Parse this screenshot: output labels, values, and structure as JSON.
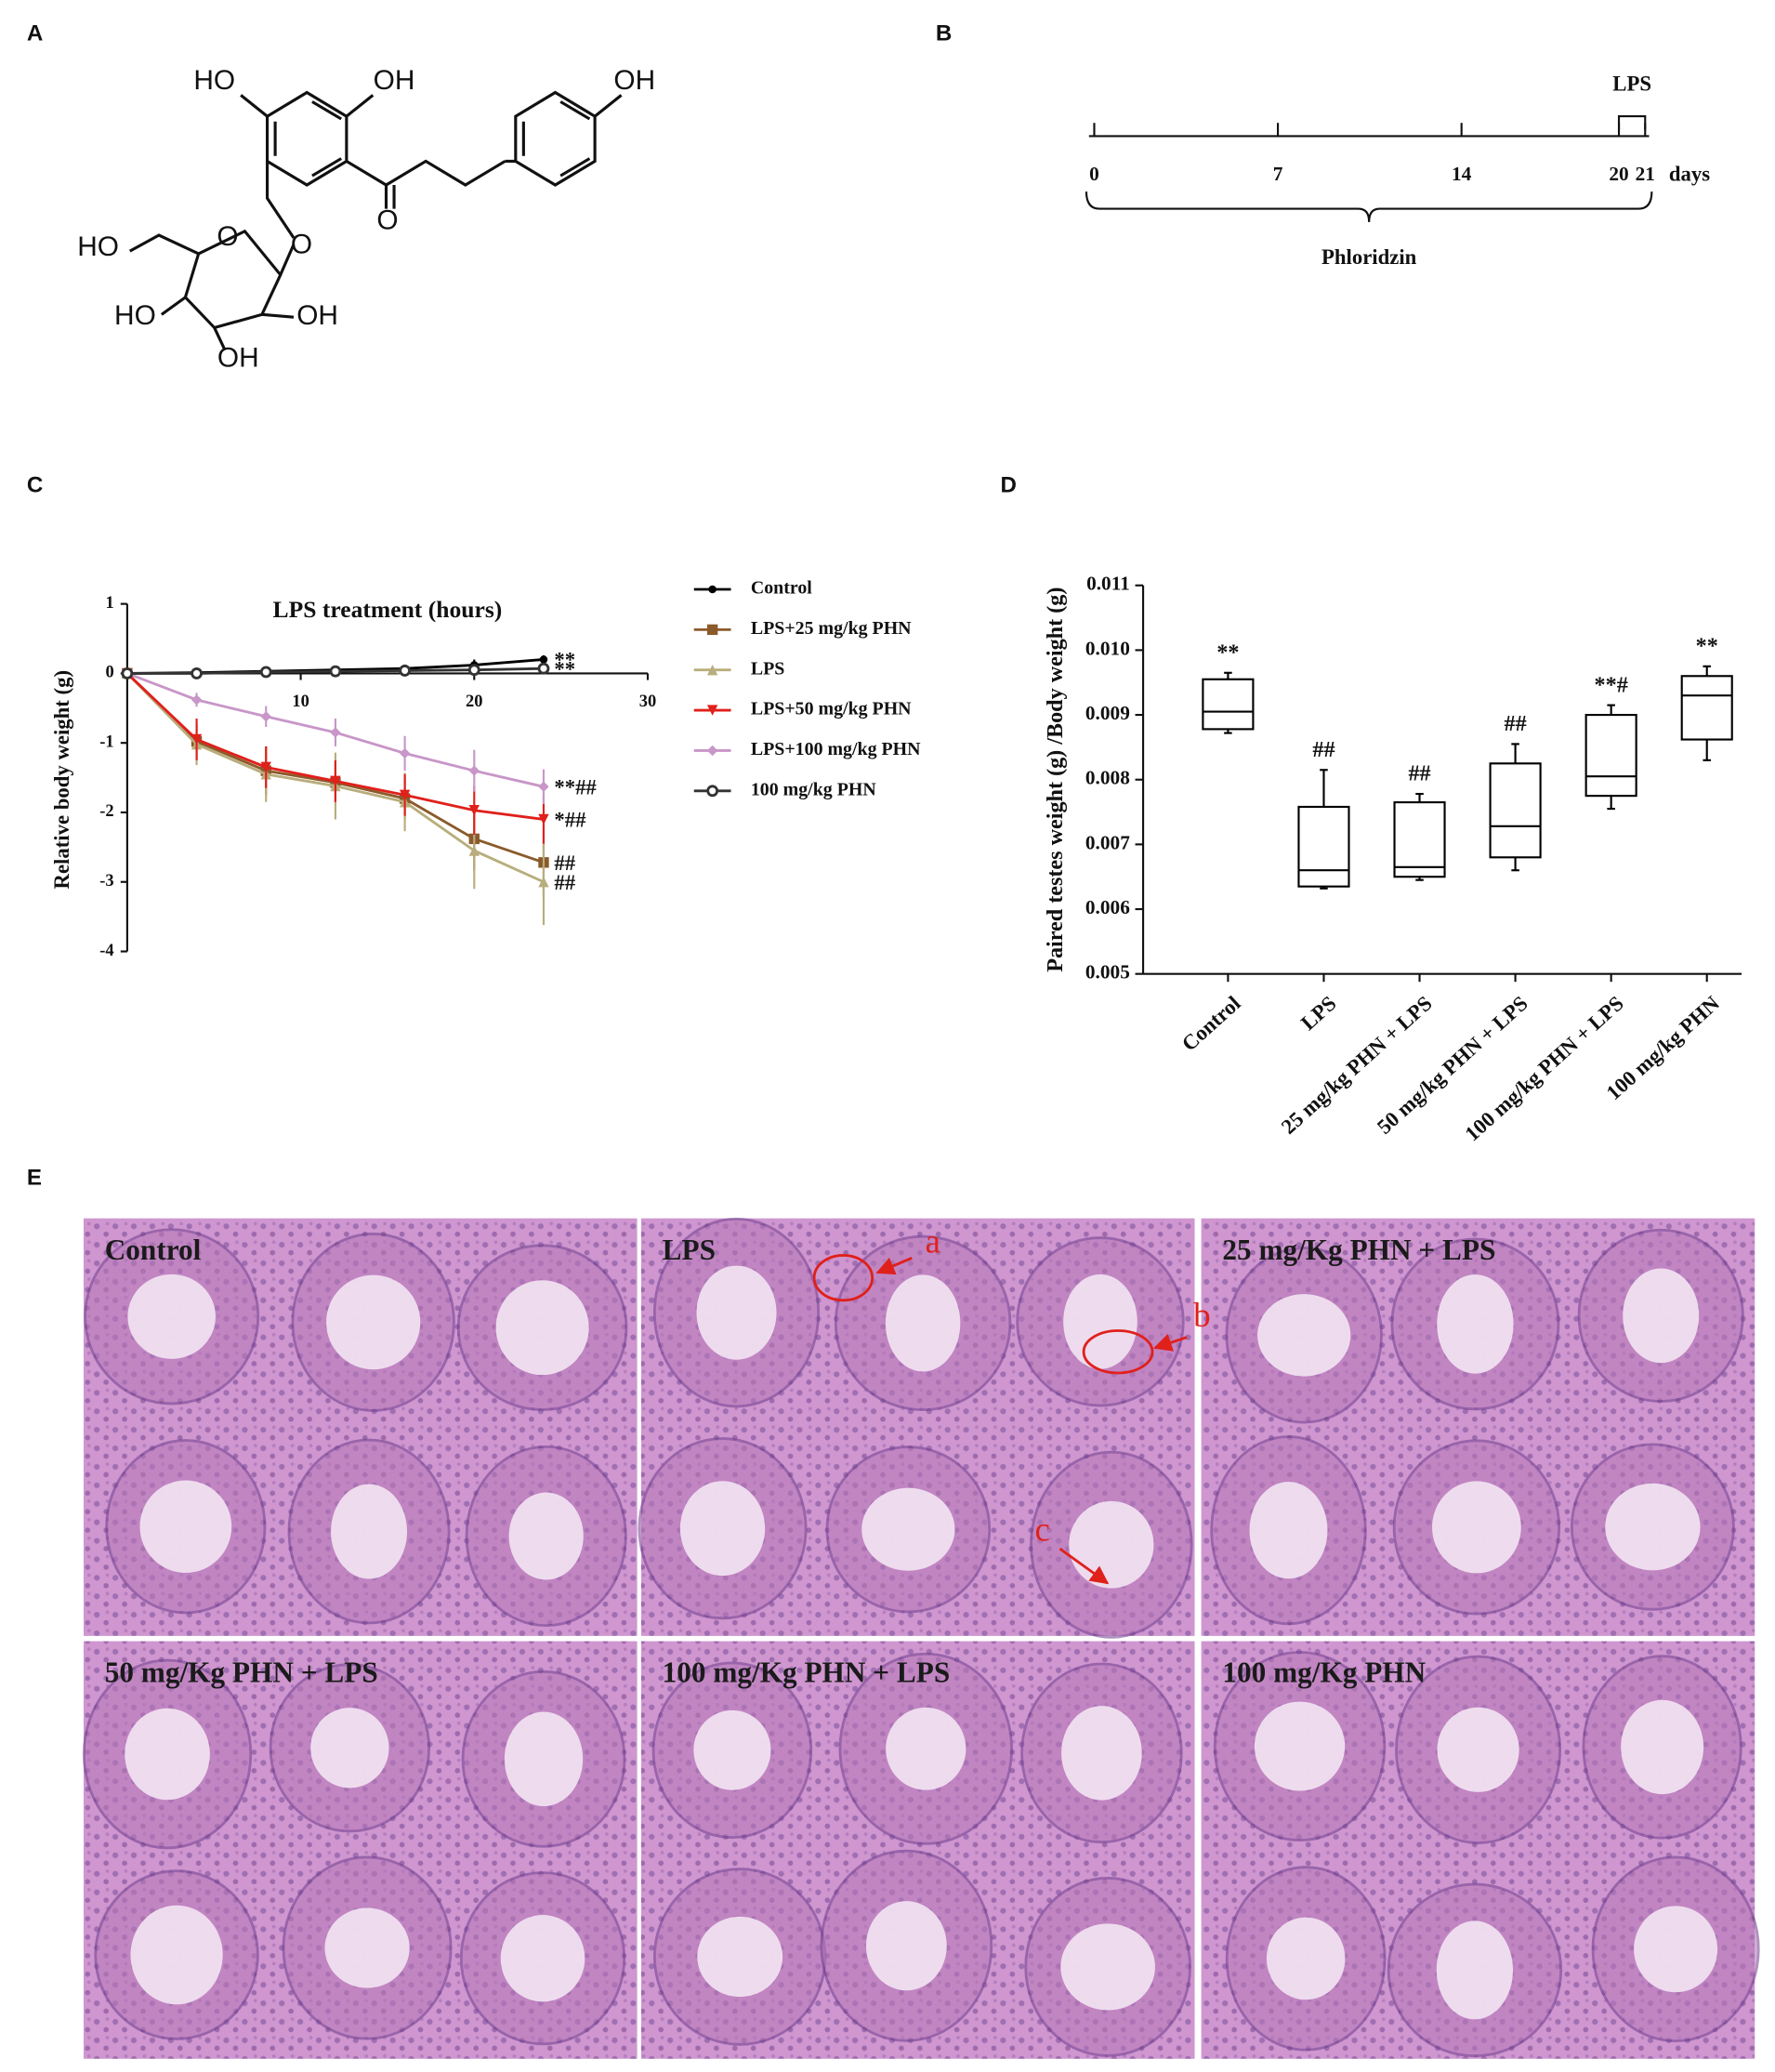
{
  "panel_labels": [
    "A",
    "B",
    "C",
    "D",
    "E"
  ],
  "structure": {
    "labels": [
      "HO",
      "OH",
      "OH",
      "O",
      "HO",
      "O",
      "O",
      "HO",
      "OH",
      "OH"
    ]
  },
  "timeline": {
    "ticks": [
      0,
      7,
      14,
      20,
      21
    ],
    "unit": "days",
    "treatment": "Phloridzin",
    "challenge": "LPS"
  },
  "chart_data": [
    {
      "type": "line",
      "title": "LPS treatment (hours)",
      "y_label": "Relative body weight (g)",
      "x": [
        0,
        4,
        8,
        12,
        16,
        20,
        24
      ],
      "xlim": [
        0,
        30
      ],
      "xticks": [
        10,
        20,
        30
      ],
      "ylim": [
        -4,
        1
      ],
      "yticks": [
        -4,
        -3,
        -2,
        -1,
        0,
        1
      ],
      "legend": "right",
      "series": [
        {
          "name": "Control",
          "color": "#000000",
          "marker": "circle",
          "values": [
            0,
            0.01,
            0.03,
            0.05,
            0.07,
            0.12,
            0.2
          ],
          "errors": [
            0,
            0.02,
            0.03,
            0.03,
            0.04,
            0.08,
            0.06
          ],
          "annotation": "**"
        },
        {
          "name": "LPS+25 mg/kg PHN",
          "color": "#8b5a2b",
          "marker": "square",
          "values": [
            0,
            -0.98,
            -1.4,
            -1.57,
            -1.8,
            -2.38,
            -2.72
          ],
          "errors": [
            0,
            0.25,
            0.35,
            0.3,
            0.3,
            0.45,
            0.5
          ],
          "annotation": "##"
        },
        {
          "name": "LPS",
          "color": "#b8ad7c",
          "marker": "triangle",
          "values": [
            0,
            -1.02,
            -1.45,
            -1.62,
            -1.85,
            -2.55,
            -3.0
          ],
          "errors": [
            0,
            0.3,
            0.4,
            0.48,
            0.42,
            0.55,
            0.62
          ],
          "annotation": "##"
        },
        {
          "name": "LPS+50 mg/kg PHN",
          "color": "#e0201b",
          "marker": "triangle-down",
          "values": [
            0,
            -0.95,
            -1.35,
            -1.55,
            -1.75,
            -1.97,
            -2.1
          ],
          "errors": [
            0,
            0.3,
            0.3,
            0.3,
            0.3,
            0.35,
            0.35
          ],
          "annotation": "*##"
        },
        {
          "name": "LPS+100 mg/kg PHN",
          "color": "#c896c8",
          "marker": "diamond",
          "values": [
            0,
            -0.38,
            -0.62,
            -0.85,
            -1.15,
            -1.4,
            -1.63
          ],
          "errors": [
            0,
            0.1,
            0.15,
            0.2,
            0.25,
            0.3,
            0.25
          ],
          "annotation": "**##"
        },
        {
          "name": "100 mg/kg PHN",
          "color": "#333333",
          "marker": "open-circle",
          "values": [
            0,
            0,
            0.02,
            0.03,
            0.04,
            0.05,
            0.07
          ],
          "errors": [
            0,
            0.02,
            0.02,
            0.03,
            0.03,
            0.04,
            0.05
          ],
          "annotation": "**"
        }
      ]
    },
    {
      "type": "box",
      "y_label": "Paired testes weight (g) /Body weight (g)",
      "categories": [
        "Control",
        "LPS",
        "25 mg/kg PHN + LPS",
        "50 mg/kg PHN + LPS",
        "100 mg/kg PHN + LPS",
        "100 mg/kg PHN"
      ],
      "min": [
        0.00872,
        0.00632,
        0.00645,
        0.0066,
        0.00755,
        0.0083
      ],
      "q1": [
        0.00878,
        0.00635,
        0.0065,
        0.0068,
        0.00775,
        0.00862
      ],
      "median": [
        0.00905,
        0.0066,
        0.00665,
        0.00728,
        0.00805,
        0.0093
      ],
      "q3": [
        0.00955,
        0.00758,
        0.00765,
        0.00825,
        0.009,
        0.0096
      ],
      "max": [
        0.00965,
        0.00815,
        0.00778,
        0.00855,
        0.00915,
        0.00975
      ],
      "annotations": [
        "**",
        "##",
        "##",
        "##",
        "**#",
        "**"
      ],
      "color": "#000000",
      "ylim": [
        0.005,
        0.011
      ],
      "yticks": [
        0.005,
        0.006,
        0.007,
        0.008,
        0.009,
        {
          "value": 0.01,
          "label": "0.010"
        },
        0.011
      ]
    }
  ],
  "micrographs": [
    {
      "label": "Control"
    },
    {
      "label": "LPS",
      "annotations": [
        "a",
        "b",
        "c"
      ]
    },
    {
      "label": "25 mg/Kg PHN + LPS"
    },
    {
      "label": "50 mg/Kg PHN + LPS"
    },
    {
      "label": "100 mg/Kg PHN + LPS"
    },
    {
      "label": "100 mg/Kg PHN"
    }
  ]
}
